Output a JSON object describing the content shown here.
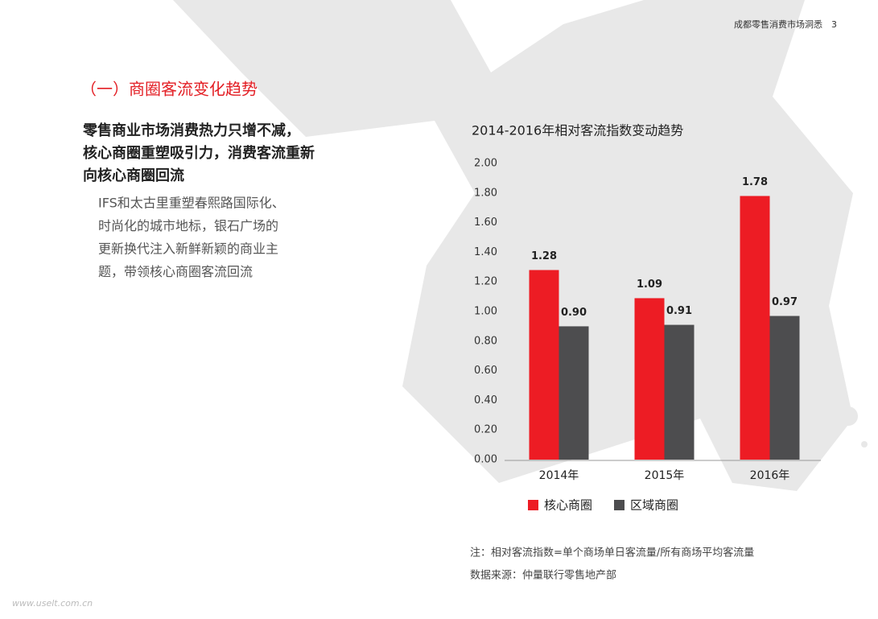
{
  "header": {
    "title": "成都零售消费市场洞悉",
    "page": 3
  },
  "section_title": "（一）商圈客流变化趋势",
  "subtitle_lines": [
    "零售商业市场消费热力只增不减，",
    "核心商圈重塑吸引力，消费客流重新",
    "向核心商圈回流"
  ],
  "body_lines": [
    "IFS和太古里重塑春熙路国际化、",
    "时尚化的城市地标，银石广场的",
    "更新换代注入新鲜新颖的商业主",
    "题，带领核心商圈客流回流"
  ],
  "chart_data": {
    "type": "bar",
    "title": "2014-2016年相对客流指数变动趋势",
    "categories": [
      "2014年",
      "2015年",
      "2016年"
    ],
    "series": [
      {
        "name": "核心商圈",
        "color": "#ed1c24",
        "values": [
          1.28,
          1.09,
          1.78
        ]
      },
      {
        "name": "区域商圈",
        "color": "#4d4d4f",
        "values": [
          0.9,
          0.91,
          0.97
        ],
        "value_labels": [
          "0.90",
          "0.91",
          "0.97"
        ]
      }
    ],
    "ylim": [
      0,
      2
    ],
    "yticks": [
      {
        "value": 0,
        "label": "0.00"
      },
      {
        "value": 0.2,
        "label": "0.20"
      },
      {
        "value": 0.4,
        "label": "0.40"
      },
      {
        "value": 0.6,
        "label": "0.60"
      },
      {
        "value": 0.8,
        "label": "0.80"
      },
      {
        "value": 1,
        "label": "1.00"
      },
      {
        "value": 1.2,
        "label": "1.20"
      },
      {
        "value": 1.4,
        "label": "1.40"
      },
      {
        "value": 1.6,
        "label": "1.60"
      },
      {
        "value": 1.8,
        "label": "1.80"
      },
      {
        "value": 2,
        "label": "2.00"
      }
    ],
    "grid": false,
    "legend": "bottom"
  },
  "notes": [
    "注：相对客流指数=单个商场单日客流量/所有商场平均客流量",
    "数据来源：仲量联行零售地产部"
  ],
  "watermark": "www.uselt.com.cn"
}
